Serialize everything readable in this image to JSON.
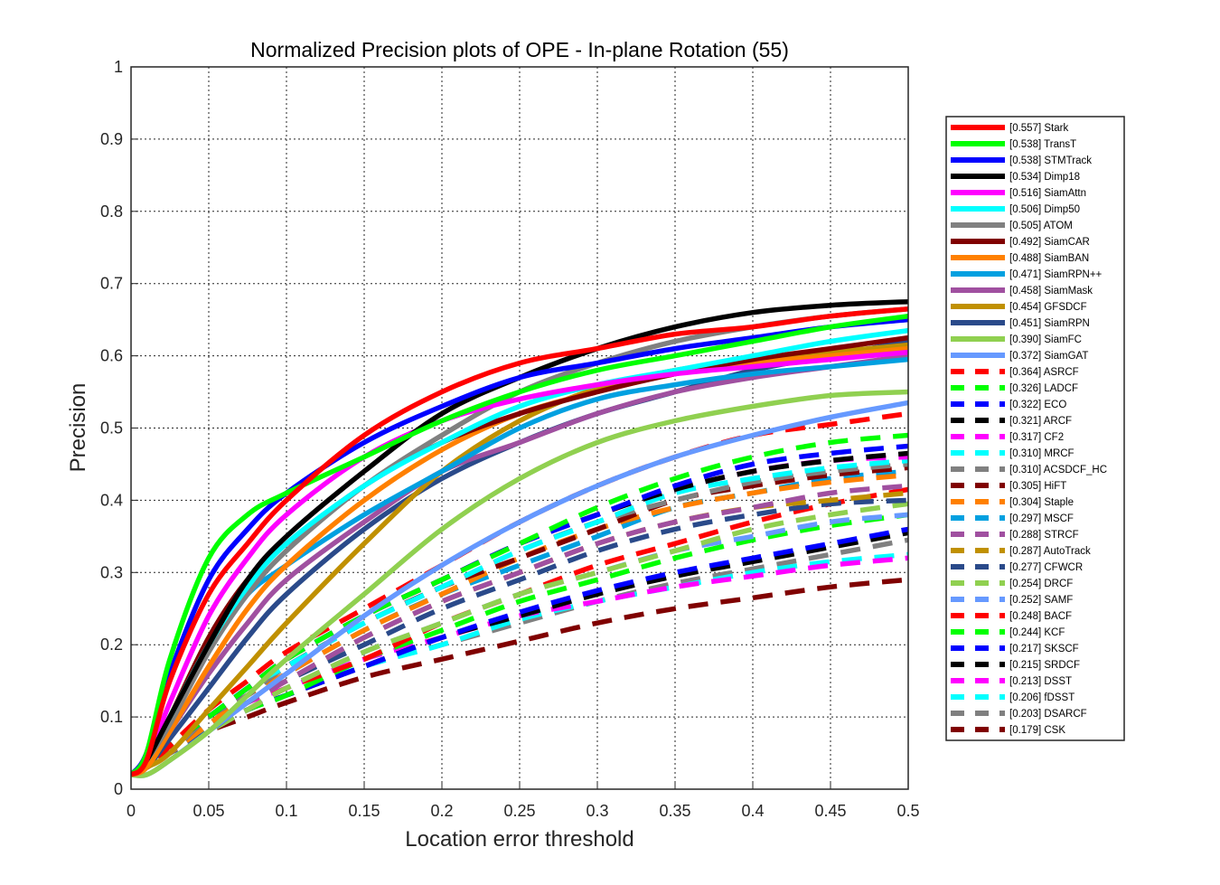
{
  "chart_data": {
    "type": "line",
    "title": "Normalized Precision plots of OPE - In-plane Rotation (55)",
    "xlabel": "Location error threshold",
    "ylabel": "Precision",
    "xlim": [
      0,
      0.5
    ],
    "ylim": [
      0,
      1
    ],
    "xticks": [
      "0",
      "0.05",
      "0.1",
      "0.15",
      "0.2",
      "0.25",
      "0.3",
      "0.35",
      "0.4",
      "0.45",
      "0.5"
    ],
    "yticks": [
      "0",
      "0.1",
      "0.2",
      "0.3",
      "0.4",
      "0.5",
      "0.6",
      "0.7",
      "0.8",
      "0.9",
      "1"
    ],
    "grid": true,
    "legend_position": "outside-right",
    "x": [
      0,
      0.01,
      0.025,
      0.05,
      0.075,
      0.1,
      0.15,
      0.2,
      0.25,
      0.3,
      0.35,
      0.4,
      0.45,
      0.5
    ],
    "series": [
      {
        "name": "[0.557] Stark",
        "color": "#ff0000",
        "dash": "solid",
        "values": [
          0.02,
          0.04,
          0.15,
          0.27,
          0.34,
          0.4,
          0.49,
          0.55,
          0.59,
          0.61,
          0.63,
          0.64,
          0.655,
          0.665
        ]
      },
      {
        "name": "[0.538] TransT",
        "color": "#00ff00",
        "dash": "solid",
        "values": [
          0.02,
          0.05,
          0.18,
          0.32,
          0.38,
          0.41,
          0.46,
          0.51,
          0.55,
          0.58,
          0.6,
          0.62,
          0.64,
          0.655
        ]
      },
      {
        "name": "[0.538] STMTrack",
        "color": "#0000ff",
        "dash": "solid",
        "values": [
          0.02,
          0.05,
          0.16,
          0.29,
          0.36,
          0.41,
          0.48,
          0.53,
          0.57,
          0.59,
          0.61,
          0.625,
          0.64,
          0.65
        ]
      },
      {
        "name": "[0.534] Dimp18",
        "color": "#000000",
        "dash": "solid",
        "values": [
          0.02,
          0.04,
          0.1,
          0.2,
          0.29,
          0.35,
          0.44,
          0.52,
          0.57,
          0.61,
          0.64,
          0.66,
          0.67,
          0.675
        ]
      },
      {
        "name": "[0.516] SiamAttn",
        "color": "#ff00ff",
        "dash": "solid",
        "values": [
          0.02,
          0.04,
          0.12,
          0.24,
          0.32,
          0.38,
          0.46,
          0.51,
          0.54,
          0.56,
          0.575,
          0.585,
          0.595,
          0.605
        ]
      },
      {
        "name": "[0.506] Dimp50",
        "color": "#00ffff",
        "dash": "solid",
        "values": [
          0.02,
          0.04,
          0.1,
          0.2,
          0.28,
          0.34,
          0.42,
          0.48,
          0.53,
          0.56,
          0.58,
          0.6,
          0.62,
          0.635
        ]
      },
      {
        "name": "[0.505] ATOM",
        "color": "#808080",
        "dash": "solid",
        "values": [
          0.02,
          0.04,
          0.09,
          0.19,
          0.27,
          0.33,
          0.42,
          0.49,
          0.55,
          0.59,
          0.62,
          0.64,
          0.655,
          0.665
        ]
      },
      {
        "name": "[0.492] SiamCAR",
        "color": "#800000",
        "dash": "solid",
        "values": [
          0.02,
          0.04,
          0.1,
          0.21,
          0.29,
          0.34,
          0.42,
          0.48,
          0.52,
          0.55,
          0.575,
          0.595,
          0.61,
          0.625
        ]
      },
      {
        "name": "[0.488] SiamBAN",
        "color": "#ff8000",
        "dash": "solid",
        "values": [
          0.02,
          0.03,
          0.08,
          0.17,
          0.25,
          0.31,
          0.4,
          0.47,
          0.52,
          0.55,
          0.575,
          0.59,
          0.6,
          0.61
        ]
      },
      {
        "name": "[0.471] SiamRPN++",
        "color": "#00a0e0",
        "dash": "solid",
        "values": [
          0.02,
          0.04,
          0.1,
          0.2,
          0.27,
          0.31,
          0.38,
          0.44,
          0.5,
          0.54,
          0.56,
          0.575,
          0.585,
          0.595
        ]
      },
      {
        "name": "[0.458] SiamMask",
        "color": "#a050a0",
        "dash": "solid",
        "values": [
          0.02,
          0.03,
          0.08,
          0.16,
          0.23,
          0.29,
          0.37,
          0.44,
          0.48,
          0.52,
          0.55,
          0.57,
          0.585,
          0.6
        ]
      },
      {
        "name": "[0.454] GFSDCF",
        "color": "#c09000",
        "dash": "solid",
        "values": [
          0.02,
          0.03,
          0.05,
          0.11,
          0.17,
          0.23,
          0.34,
          0.44,
          0.51,
          0.555,
          0.58,
          0.595,
          0.605,
          0.615
        ]
      },
      {
        "name": "[0.451] SiamRPN",
        "color": "#2a4a8a",
        "dash": "solid",
        "values": [
          0.02,
          0.03,
          0.07,
          0.14,
          0.21,
          0.27,
          0.36,
          0.43,
          0.48,
          0.52,
          0.55,
          0.58,
          0.6,
          0.62
        ]
      },
      {
        "name": "[0.390] SiamFC",
        "color": "#90d050",
        "dash": "solid",
        "values": [
          0.02,
          0.02,
          0.04,
          0.08,
          0.13,
          0.18,
          0.27,
          0.36,
          0.43,
          0.48,
          0.51,
          0.53,
          0.545,
          0.55
        ]
      },
      {
        "name": "[0.372] SiamGAT",
        "color": "#6699ff",
        "dash": "solid",
        "values": [
          0.02,
          0.02,
          0.04,
          0.08,
          0.12,
          0.16,
          0.24,
          0.31,
          0.37,
          0.42,
          0.46,
          0.49,
          0.515,
          0.535
        ]
      },
      {
        "name": "[0.364] ASRCF",
        "color": "#ff0000",
        "dash": "dash",
        "values": [
          0.02,
          0.03,
          0.06,
          0.11,
          0.15,
          0.19,
          0.25,
          0.31,
          0.37,
          0.42,
          0.46,
          0.49,
          0.505,
          0.52
        ]
      },
      {
        "name": "[0.326] LADCF",
        "color": "#00ff00",
        "dash": "dash",
        "values": [
          0.02,
          0.03,
          0.06,
          0.1,
          0.14,
          0.18,
          0.24,
          0.29,
          0.34,
          0.39,
          0.43,
          0.46,
          0.48,
          0.49
        ]
      },
      {
        "name": "[0.322] ECO",
        "color": "#0000ff",
        "dash": "dash",
        "values": [
          0.02,
          0.03,
          0.06,
          0.1,
          0.14,
          0.18,
          0.24,
          0.29,
          0.34,
          0.38,
          0.42,
          0.45,
          0.465,
          0.475
        ]
      },
      {
        "name": "[0.321] ARCF",
        "color": "#000000",
        "dash": "dash",
        "values": [
          0.02,
          0.03,
          0.06,
          0.1,
          0.14,
          0.18,
          0.24,
          0.29,
          0.34,
          0.38,
          0.415,
          0.44,
          0.455,
          0.465
        ]
      },
      {
        "name": "[0.317] CF2",
        "color": "#ff00ff",
        "dash": "dash",
        "values": [
          0.02,
          0.03,
          0.06,
          0.1,
          0.14,
          0.18,
          0.24,
          0.29,
          0.34,
          0.38,
          0.415,
          0.44,
          0.455,
          0.46
        ]
      },
      {
        "name": "[0.310] MRCF",
        "color": "#00ffff",
        "dash": "dash",
        "values": [
          0.02,
          0.03,
          0.06,
          0.1,
          0.14,
          0.17,
          0.23,
          0.28,
          0.33,
          0.37,
          0.41,
          0.43,
          0.445,
          0.455
        ]
      },
      {
        "name": "[0.310] ACSDCF_HC",
        "color": "#808080",
        "dash": "dash",
        "values": [
          0.02,
          0.03,
          0.05,
          0.1,
          0.13,
          0.17,
          0.23,
          0.28,
          0.33,
          0.37,
          0.4,
          0.425,
          0.44,
          0.45
        ]
      },
      {
        "name": "[0.305] HiFT",
        "color": "#800000",
        "dash": "dash",
        "values": [
          0.02,
          0.03,
          0.05,
          0.1,
          0.13,
          0.17,
          0.23,
          0.28,
          0.32,
          0.36,
          0.4,
          0.42,
          0.435,
          0.445
        ]
      },
      {
        "name": "[0.304] Staple",
        "color": "#ff8000",
        "dash": "dash",
        "values": [
          0.02,
          0.03,
          0.05,
          0.09,
          0.13,
          0.16,
          0.22,
          0.27,
          0.32,
          0.36,
          0.39,
          0.41,
          0.425,
          0.435
        ]
      },
      {
        "name": "[0.297] MSCF",
        "color": "#00a0e0",
        "dash": "dash",
        "values": [
          0.02,
          0.03,
          0.05,
          0.09,
          0.13,
          0.16,
          0.22,
          0.27,
          0.31,
          0.35,
          0.39,
          0.41,
          0.43,
          0.44
        ]
      },
      {
        "name": "[0.288] STRCF",
        "color": "#a050a0",
        "dash": "dash",
        "values": [
          0.02,
          0.03,
          0.05,
          0.09,
          0.12,
          0.15,
          0.21,
          0.26,
          0.3,
          0.34,
          0.37,
          0.39,
          0.41,
          0.42
        ]
      },
      {
        "name": "[0.287] AutoTrack",
        "color": "#c09000",
        "dash": "dash",
        "values": [
          0.02,
          0.03,
          0.05,
          0.09,
          0.12,
          0.15,
          0.21,
          0.26,
          0.3,
          0.34,
          0.37,
          0.39,
          0.4,
          0.41
        ]
      },
      {
        "name": "[0.277] CFWCR",
        "color": "#2a4a8a",
        "dash": "dash",
        "values": [
          0.02,
          0.03,
          0.05,
          0.08,
          0.12,
          0.15,
          0.2,
          0.25,
          0.29,
          0.33,
          0.36,
          0.38,
          0.395,
          0.4
        ]
      },
      {
        "name": "[0.254] DRCF",
        "color": "#90d050",
        "dash": "dash",
        "values": [
          0.02,
          0.03,
          0.05,
          0.08,
          0.11,
          0.14,
          0.19,
          0.23,
          0.27,
          0.3,
          0.33,
          0.36,
          0.38,
          0.395
        ]
      },
      {
        "name": "[0.252] SAMF",
        "color": "#6699ff",
        "dash": "dash",
        "values": [
          0.02,
          0.03,
          0.05,
          0.08,
          0.11,
          0.14,
          0.19,
          0.23,
          0.27,
          0.3,
          0.33,
          0.35,
          0.37,
          0.38
        ]
      },
      {
        "name": "[0.248] BACF",
        "color": "#ff0000",
        "dash": "dash",
        "values": [
          0.02,
          0.03,
          0.05,
          0.08,
          0.11,
          0.14,
          0.18,
          0.23,
          0.27,
          0.31,
          0.34,
          0.37,
          0.395,
          0.415
        ]
      },
      {
        "name": "[0.244] KCF",
        "color": "#00ff00",
        "dash": "dash",
        "values": [
          0.02,
          0.03,
          0.05,
          0.08,
          0.11,
          0.13,
          0.18,
          0.22,
          0.26,
          0.29,
          0.32,
          0.345,
          0.365,
          0.38
        ]
      },
      {
        "name": "[0.217] SKSCF",
        "color": "#0000ff",
        "dash": "dash",
        "values": [
          0.02,
          0.03,
          0.05,
          0.08,
          0.11,
          0.13,
          0.17,
          0.21,
          0.245,
          0.275,
          0.3,
          0.32,
          0.34,
          0.36
        ]
      },
      {
        "name": "[0.215] SRDCF",
        "color": "#000000",
        "dash": "dash",
        "values": [
          0.02,
          0.03,
          0.05,
          0.08,
          0.11,
          0.13,
          0.17,
          0.21,
          0.24,
          0.27,
          0.295,
          0.315,
          0.335,
          0.355
        ]
      },
      {
        "name": "[0.213] DSST",
        "color": "#ff00ff",
        "dash": "dash",
        "values": [
          0.02,
          0.03,
          0.05,
          0.09,
          0.12,
          0.14,
          0.18,
          0.21,
          0.24,
          0.26,
          0.28,
          0.295,
          0.31,
          0.32
        ]
      },
      {
        "name": "[0.206] fDSST",
        "color": "#00ffff",
        "dash": "dash",
        "values": [
          0.02,
          0.03,
          0.05,
          0.08,
          0.11,
          0.13,
          0.17,
          0.2,
          0.235,
          0.26,
          0.28,
          0.3,
          0.315,
          0.325
        ]
      },
      {
        "name": "[0.203] DSARCF",
        "color": "#808080",
        "dash": "dash",
        "values": [
          0.02,
          0.03,
          0.05,
          0.08,
          0.11,
          0.13,
          0.17,
          0.2,
          0.23,
          0.26,
          0.285,
          0.305,
          0.325,
          0.345
        ]
      },
      {
        "name": "[0.179] CSK",
        "color": "#800000",
        "dash": "dash",
        "values": [
          0.02,
          0.03,
          0.05,
          0.08,
          0.1,
          0.12,
          0.155,
          0.18,
          0.205,
          0.23,
          0.25,
          0.265,
          0.28,
          0.29
        ]
      }
    ]
  }
}
